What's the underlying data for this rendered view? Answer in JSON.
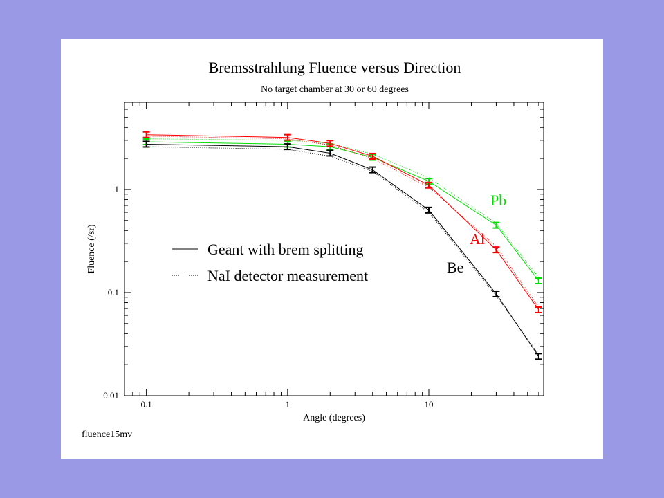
{
  "chart_data": {
    "type": "line",
    "title": "Bremsstrahlung Fluence versus Direction",
    "subtitle": "No target chamber at 30 or 60 degrees",
    "xlabel": "Angle (degrees)",
    "ylabel": "Fluence (/sr)",
    "x_scale": "log",
    "y_scale": "log",
    "xlim": [
      0.07,
      65
    ],
    "ylim": [
      0.01,
      7
    ],
    "x_ticks": [
      {
        "value": 0.1,
        "label": "0.1"
      },
      {
        "value": 1,
        "label": "1"
      },
      {
        "value": 10,
        "label": "10"
      }
    ],
    "y_ticks": [
      {
        "value": 0.01,
        "label": "0.01"
      },
      {
        "value": 0.1,
        "label": "0.1"
      },
      {
        "value": 1,
        "label": "1"
      }
    ],
    "grid": false,
    "footer_label": "fluence15mv",
    "legend": {
      "position": "middle-left",
      "entries": [
        {
          "label": "Geant with brem splitting",
          "style": "solid"
        },
        {
          "label": "NaI detector measurement",
          "style": "dotted"
        }
      ]
    },
    "series": [
      {
        "name": "Pb",
        "color": "#00e000",
        "x": [
          0.1,
          1,
          2,
          4,
          10,
          30,
          60
        ],
        "y": [
          2.9,
          2.75,
          2.6,
          2.05,
          1.2,
          0.45,
          0.13
        ],
        "dotted_y": [
          3.1,
          3.0,
          2.8,
          2.2,
          1.3,
          0.47,
          0.14
        ]
      },
      {
        "name": "Al",
        "color": "#ff0000",
        "x": [
          0.1,
          1,
          2,
          4,
          10,
          30,
          60
        ],
        "y": [
          3.4,
          3.2,
          2.8,
          2.1,
          1.1,
          0.26,
          0.068
        ],
        "dotted_y": [
          3.3,
          3.1,
          2.7,
          2.0,
          1.05,
          0.28,
          0.072
        ]
      },
      {
        "name": "Be",
        "color": "#000000",
        "x": [
          0.1,
          1,
          2,
          4,
          10,
          30,
          60
        ],
        "y": [
          2.75,
          2.6,
          2.25,
          1.55,
          0.63,
          0.097,
          0.024
        ],
        "dotted_y": [
          2.6,
          2.45,
          2.1,
          1.5,
          0.6,
          0.093,
          0.025
        ]
      }
    ],
    "annotations": [
      {
        "text": "Pb",
        "color": "#00e000"
      },
      {
        "text": "Al",
        "color": "#ff0000"
      },
      {
        "text": "Be",
        "color": "#000000"
      }
    ]
  }
}
